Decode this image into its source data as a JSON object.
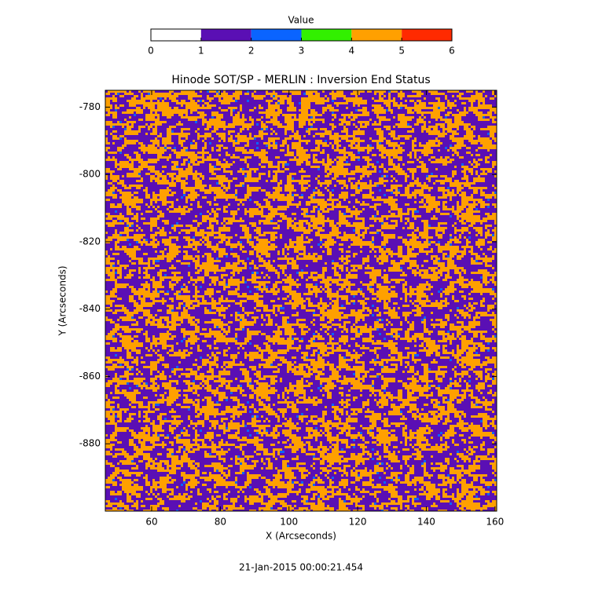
{
  "chart_data": {
    "type": "heatmap",
    "title": "Hinode SOT/SP - MERLIN : Inversion End Status",
    "x_label": "X (Arcseconds)",
    "y_label": "Y (Arcseconds)",
    "footer": "21-Jan-2015 00:00:21.454",
    "xlim": [
      46.5,
      160.5
    ],
    "xticks": [
      60,
      80,
      100,
      120,
      140,
      160
    ],
    "ylim": [
      -900,
      -775
    ],
    "yticks": [
      -780,
      -800,
      -820,
      -840,
      -860,
      -880
    ],
    "colorbar": {
      "title": "Value",
      "ticks": [
        0,
        1,
        2,
        3,
        4,
        5,
        6
      ],
      "colors": [
        "#ffffff",
        "#5a0fb4",
        "#0a64ff",
        "#32f000",
        "#ffa000",
        "#ff2a00"
      ]
    }
  }
}
